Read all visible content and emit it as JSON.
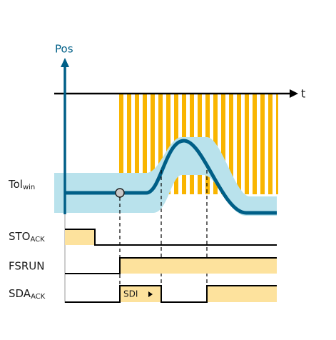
{
  "axis": {
    "y_label": "Pos",
    "x_label": "t"
  },
  "band_label": {
    "main": "Tol",
    "sub": "win"
  },
  "signals": [
    {
      "main": "STO",
      "sub": "ACK"
    },
    {
      "main": "FSRUN"
    },
    {
      "main": "SDA",
      "sub": "ACK"
    }
  ],
  "pulse_label": "SDI"
}
